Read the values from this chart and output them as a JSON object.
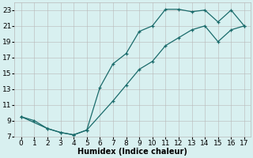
{
  "line1_x": [
    0,
    1,
    2,
    3,
    4,
    5,
    6,
    7,
    8,
    9,
    10,
    11,
    12,
    13,
    14,
    15,
    16,
    17
  ],
  "line1_y": [
    9.5,
    9.0,
    8.0,
    7.5,
    7.2,
    7.8,
    13.2,
    16.2,
    17.5,
    20.3,
    21.0,
    23.1,
    23.1,
    22.8,
    23.0,
    21.5,
    23.0,
    21.0
  ],
  "line2_x": [
    0,
    2,
    3,
    4,
    5,
    7,
    8,
    9,
    10,
    11,
    12,
    13,
    14,
    15,
    16,
    17
  ],
  "line2_y": [
    9.5,
    8.0,
    7.5,
    7.2,
    7.8,
    11.5,
    13.5,
    15.5,
    16.5,
    18.5,
    19.5,
    20.5,
    21.0,
    19.0,
    20.5,
    21.0
  ],
  "line_color": "#1a6b6b",
  "bg_color": "#d8f0f0",
  "grid_color": "#b8b8b8",
  "xlabel": "Humidex (Indice chaleur)",
  "xlim": [
    -0.5,
    17.5
  ],
  "ylim": [
    7,
    24
  ],
  "xticks": [
    0,
    1,
    2,
    3,
    4,
    5,
    6,
    7,
    8,
    9,
    10,
    11,
    12,
    13,
    14,
    15,
    16,
    17
  ],
  "yticks": [
    7,
    9,
    11,
    13,
    15,
    17,
    19,
    21,
    23
  ],
  "xlabel_fontsize": 7,
  "tick_fontsize": 6.5
}
